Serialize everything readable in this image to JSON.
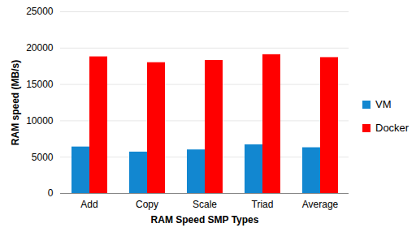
{
  "chart_data": {
    "type": "bar",
    "categories": [
      "Add",
      "Copy",
      "Scale",
      "Triad",
      "Average"
    ],
    "series": [
      {
        "name": "VM",
        "color": "#1287d0",
        "values": [
          6400,
          5700,
          6000,
          6700,
          6300
        ]
      },
      {
        "name": "Docker",
        "color": "#ff0000",
        "values": [
          18800,
          18000,
          18300,
          19100,
          18700
        ]
      }
    ],
    "x_label": "RAM Speed SMP Types",
    "y_label": "RAM speed (MB/s)",
    "ylim": [
      0,
      25000
    ],
    "yticks": [
      0,
      5000,
      10000,
      15000,
      20000,
      25000
    ],
    "grid": true,
    "legend": "right"
  }
}
